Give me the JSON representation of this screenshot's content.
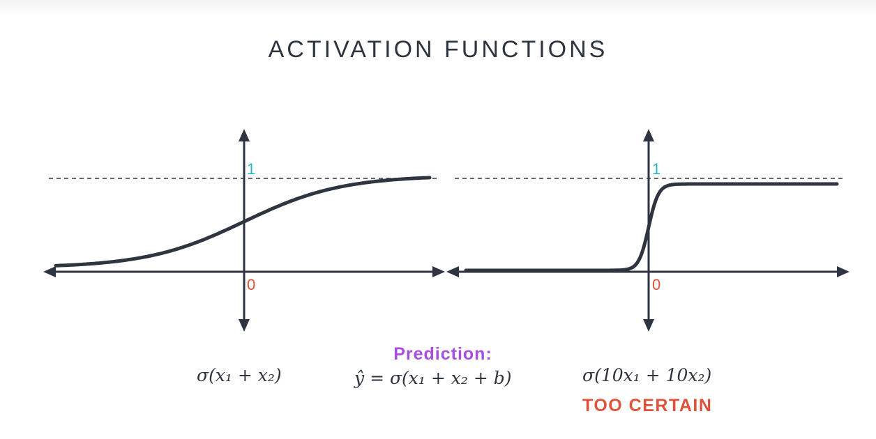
{
  "title": "ACTIVATION FUNCTIONS",
  "left_plot": {
    "label_one": "1",
    "label_zero": "0",
    "formula": "σ(x₁ + x₂)"
  },
  "right_plot": {
    "label_one": "1",
    "label_zero": "0",
    "formula": "σ(10x₁ + 10x₂)",
    "warning": "TOO CERTAIN"
  },
  "prediction": {
    "label": "Prediction:",
    "formula": "ŷ = σ(x₁ + x₂ + b)"
  },
  "colors": {
    "ink": "#2e3440",
    "one_label": "#29b6c6",
    "zero_label": "#e0523c",
    "prediction": "#a64ee0",
    "warning": "#e0523c"
  }
}
